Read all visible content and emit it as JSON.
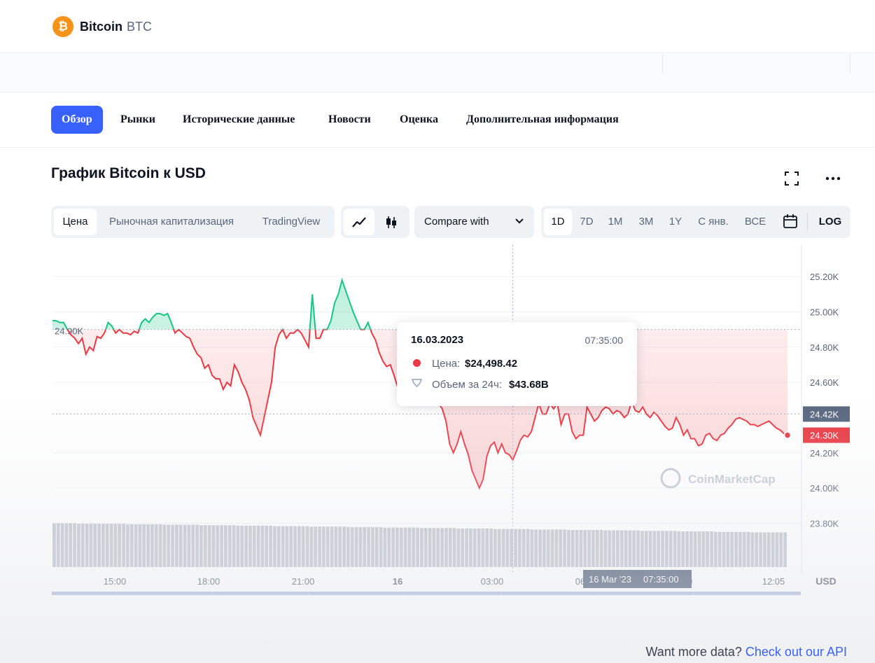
{
  "header": {
    "coin_name": "Bitcoin",
    "coin_symbol": "BTC",
    "logo_glyph": "₿",
    "logo_color": "#f7931a"
  },
  "tabs": [
    {
      "label": "Обзор",
      "active": true
    },
    {
      "label": "Рынки"
    },
    {
      "label": "Исторические данные"
    },
    {
      "label": "Новости"
    },
    {
      "label": "Оценка"
    },
    {
      "label": "Дополнительная информация"
    }
  ],
  "chart_header": {
    "title": "График Bitcoin к USD",
    "expand_icon": "fullscreen-icon",
    "more_icon": "more-horizontal-icon"
  },
  "controls": {
    "metric_tabs": [
      "Цена",
      "Рыночная капитализация",
      "TradingView"
    ],
    "chart_types": [
      "line-chart-icon",
      "candlestick-icon"
    ],
    "compare_label": "Compare with",
    "ranges": [
      "1D",
      "7D",
      "1M",
      "3M",
      "1Y",
      "С янв.",
      "ВСЕ"
    ],
    "calendar_icon": "calendar-icon",
    "log_label": "LOG"
  },
  "tooltip": {
    "date": "16.03.2023",
    "time": "07:35:00",
    "price_label": "Цена:",
    "price": "$24,498.42",
    "volume_label": "Объем за 24ч:",
    "volume": "$43.68B"
  },
  "chart_data": {
    "type": "area",
    "currency": "USD",
    "reference_price": 24900,
    "reference_label": "24.90K",
    "y_ticks": [
      "25.20K",
      "25.00K",
      "24.80K",
      "24.60K",
      "24.42K",
      "24.20K",
      "24.00K",
      "23.80K"
    ],
    "y_tick_values": [
      25200,
      25000,
      24800,
      24600,
      24200,
      24000,
      23800
    ],
    "ylim": [
      23750,
      25300
    ],
    "x_ticks": [
      "15:00",
      "18:00",
      "21:00",
      "16",
      "03:00",
      "06:00",
      "09:00",
      "12:05"
    ],
    "nav_ticks": [
      "15:00",
      "18:00",
      "21:00",
      "16",
      "03:00",
      "06:00",
      "09:00"
    ],
    "hover_price_label": "24.42K",
    "last_price_label": "24.30K",
    "hover_time_label_date": "16 Mar '23",
    "hover_time_label_time": "07:35:00",
    "watermark": "CoinMarketCap",
    "colors": {
      "up": "#16c784",
      "down": "#ea3943",
      "price_tag": "#ea3943",
      "hover_tag": "#58667e"
    },
    "series": [
      {
        "price": [
          24950,
          24950,
          24940,
          24940,
          24900,
          24870,
          24850,
          24820,
          24850,
          24760,
          24800,
          24780,
          24860,
          24850,
          24880,
          24940,
          24920,
          24880,
          24900,
          24880,
          24880,
          24870,
          24890,
          24880,
          24940,
          24960,
          24940,
          24970,
          24990,
          24990,
          24980,
          24990,
          24940,
          24880,
          24900,
          24880,
          24860,
          24850,
          24800,
          24760,
          24740,
          24680,
          24700,
          24640,
          24620,
          24620,
          24560,
          24600,
          24580,
          24700,
          24660,
          24600,
          24560,
          24500,
          24400,
          24350,
          24300,
          24400,
          24500,
          24600,
          24800,
          24870,
          24900,
          24850,
          24880,
          24880,
          24900,
          24880,
          24840,
          24800,
          25100,
          24850,
          24850,
          24900,
          24900,
          24950,
          25050,
          25100,
          25180,
          25120,
          25060,
          25000,
          24950,
          24900,
          24900,
          24940,
          24880,
          24840,
          24770,
          24720,
          24690,
          24700,
          24640,
          24570,
          24680,
          24720,
          24700,
          24660,
          24680,
          24610,
          24640,
          24620,
          24600,
          24540,
          24480,
          24450,
          24380,
          24250,
          24200,
          24250,
          24320,
          24250,
          24190,
          24100,
          24050,
          24000,
          24050,
          24180,
          24240,
          24260,
          24200,
          24250,
          24200,
          24190,
          24160,
          24210,
          24270,
          24300,
          24290,
          24320,
          24400,
          24480,
          24420,
          24420,
          24480,
          24450,
          24480,
          24360,
          24420,
          24420,
          24320,
          24280,
          24300,
          24300,
          24460,
          24420,
          24380,
          24400,
          24440,
          24460,
          24450,
          24420,
          24440,
          24430,
          24400,
          24420,
          24490,
          24440,
          24430,
          24460,
          24420,
          24400,
          24430,
          24410,
          24380,
          24350,
          24330,
          24340,
          24400,
          24360,
          24300,
          24330,
          24280,
          24280,
          24240,
          24250,
          24300,
          24310,
          24280,
          24270,
          24300,
          24310,
          24340,
          24360,
          24390,
          24400,
          24390,
          24380,
          24360,
          24360,
          24350,
          24360,
          24370,
          24380,
          24360,
          24340,
          24330,
          24310,
          24300
        ]
      }
    ],
    "volume": [
      0.92,
      0.92,
      0.91,
      0.91,
      0.91,
      0.91,
      0.9,
      0.9,
      0.9,
      0.89,
      0.89,
      0.89,
      0.88,
      0.88,
      0.88,
      0.87,
      0.87,
      0.87,
      0.86,
      0.86,
      0.86,
      0.85,
      0.85,
      0.85,
      0.84,
      0.84,
      0.84,
      0.83,
      0.83,
      0.83,
      0.82,
      0.82,
      0.82,
      0.81,
      0.81,
      0.81,
      0.8,
      0.8,
      0.8,
      0.79,
      0.79,
      0.79,
      0.78,
      0.78,
      0.78,
      0.77,
      0.77,
      0.77,
      0.76,
      0.76,
      0.76,
      0.75,
      0.75,
      0.75,
      0.74,
      0.74,
      0.74,
      0.73,
      0.73,
      0.73
    ]
  },
  "footer": {
    "text": "Want more data?",
    "link": "Check out our API"
  }
}
